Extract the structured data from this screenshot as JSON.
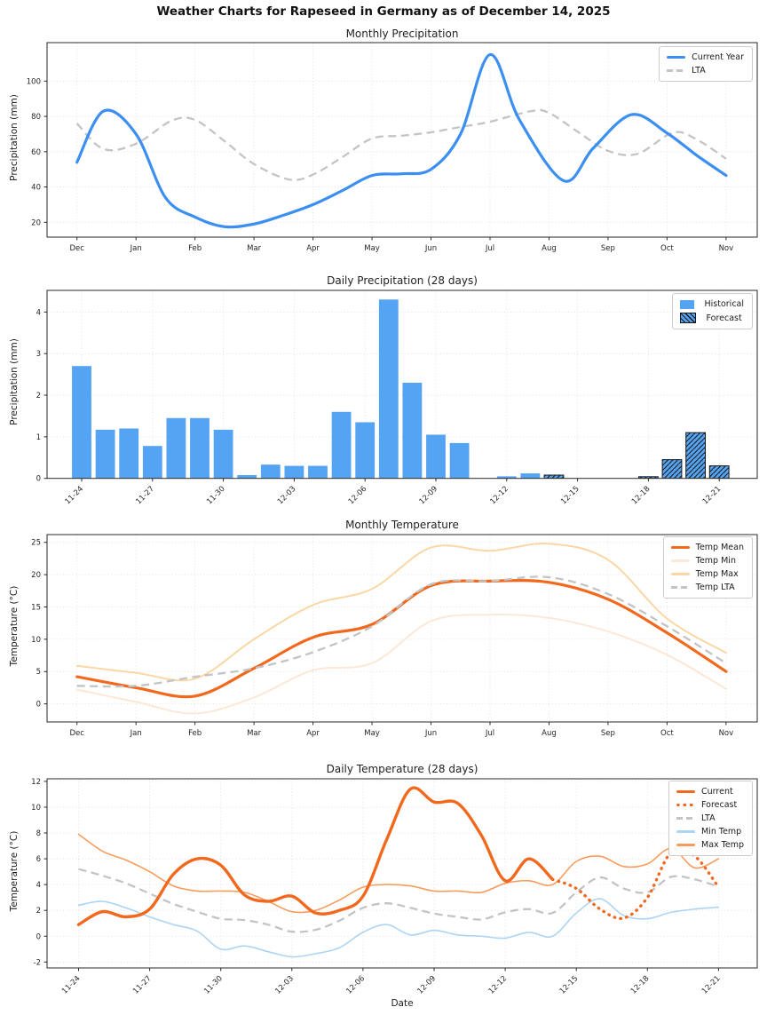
{
  "figure": {
    "title": "Weather Charts for Rapeseed in Germany as of December 14, 2025"
  },
  "colors": {
    "current_year_blue": "#3b8ff3",
    "bar_blue": "#55a3f3",
    "lta_gray": "#c1c5c8",
    "orange_main": "#f2681c",
    "temp_max_tan": "#fad7a5",
    "temp_min_peach": "#fde7d6",
    "daily_max_orange": "#f79c5d",
    "daily_min_blue": "#add4f3",
    "grid": "#dcdcdc",
    "spine": "#2a2a2a",
    "hatch_black": "#1a1a1a"
  },
  "chart_data": [
    {
      "id": "monthly-precipitation",
      "type": "line",
      "title": "Monthly Precipitation",
      "ylabel": "Precipitation (mm)",
      "categories": [
        "Dec",
        "Jan",
        "Feb",
        "Mar",
        "Apr",
        "May",
        "Jun",
        "Jul",
        "Aug",
        "Sep",
        "Oct",
        "Nov"
      ],
      "y_ticks": [
        20,
        40,
        60,
        80,
        100
      ],
      "ylim": [
        11.6,
        121.8
      ],
      "grid": true,
      "legend_position": "upper right",
      "legend": [
        {
          "label": "Current Year",
          "swatch": "line",
          "color": "#3b8ff3",
          "thick": true
        },
        {
          "label": "LTA",
          "swatch": "dash",
          "color": "#c1c5c8"
        }
      ],
      "series": [
        {
          "name": "LTA",
          "color": "#c1c5c8",
          "style": "dashed",
          "width": 2.3,
          "x": [
            0,
            0.45,
            1,
            1.6,
            2,
            2.5,
            3,
            3.6,
            4,
            4.5,
            5,
            5.5,
            6,
            6.5,
            7,
            7.7,
            8,
            8.5,
            9,
            9.5,
            10.1,
            10.5,
            11
          ],
          "values": [
            76,
            61.5,
            64.5,
            77.5,
            78,
            66,
            53,
            44.2,
            47,
            57,
            67.5,
            69,
            71,
            74,
            77,
            83,
            82,
            71,
            60.5,
            58.8,
            70.8,
            67,
            56
          ]
        },
        {
          "name": "Current Year",
          "color": "#3b8ff3",
          "style": "solid",
          "width": 3.2,
          "x": [
            0,
            0.45,
            1,
            1.5,
            2,
            2.5,
            3,
            3.5,
            4,
            4.5,
            5,
            5.5,
            6,
            6.5,
            7,
            7.5,
            8.25,
            8.75,
            9.4,
            10,
            10.5,
            11
          ],
          "values": [
            54,
            83,
            70,
            34,
            23,
            17.5,
            19,
            24,
            30,
            38,
            46.5,
            47.5,
            50,
            70,
            115,
            78,
            43.5,
            62,
            81,
            70.5,
            58,
            46.5
          ]
        }
      ]
    },
    {
      "id": "daily-precipitation",
      "type": "bar",
      "title": "Daily Precipitation (28 days)",
      "ylabel": "Precipitation (mm)",
      "categories": [
        "11-24",
        "11-25",
        "11-26",
        "11-27",
        "11-28",
        "11-29",
        "11-30",
        "12-01",
        "12-02",
        "12-03",
        "12-04",
        "12-05",
        "12-06",
        "12-07",
        "12-08",
        "12-09",
        "12-10",
        "12-11",
        "12-12",
        "12-13",
        "12-14",
        "12-15",
        "12-16",
        "12-17",
        "12-18",
        "12-19",
        "12-20",
        "12-21"
      ],
      "x_tick_every": 3,
      "y_ticks": [
        0,
        1,
        2,
        3,
        4
      ],
      "ylim": [
        0,
        4.52
      ],
      "grid": true,
      "bar_color": "#55a3f3",
      "hatch_color": "#1a1a1a",
      "values": [
        2.7,
        1.17,
        1.2,
        0.78,
        1.45,
        1.45,
        1.17,
        0.08,
        0.33,
        0.3,
        0.3,
        1.6,
        1.35,
        4.3,
        2.3,
        1.05,
        0.85,
        0,
        0.05,
        0.12,
        0.08,
        0,
        0,
        0,
        0.04,
        0.45,
        1.1,
        0.3
      ],
      "forecast_start_index": 20,
      "legend_position": "upper right",
      "legend": [
        {
          "label": "Historical",
          "swatch": "patch",
          "color": "#55a3f3"
        },
        {
          "label": "Forecast",
          "swatch": "patch-hatch",
          "color": "#55a3f3"
        }
      ]
    },
    {
      "id": "monthly-temperature",
      "type": "line",
      "title": "Monthly Temperature",
      "ylabel": "Temperature (°C)",
      "categories": [
        "Dec",
        "Jan",
        "Feb",
        "Mar",
        "Apr",
        "May",
        "Jun",
        "Jul",
        "Aug",
        "Sep",
        "Oct",
        "Nov"
      ],
      "y_ticks": [
        0,
        5,
        10,
        15,
        20,
        25
      ],
      "ylim": [
        -2.8,
        26.2
      ],
      "grid": true,
      "legend_position": "upper right",
      "legend": [
        {
          "label": "Temp Mean",
          "swatch": "line",
          "color": "#f2681c",
          "thick": true
        },
        {
          "label": "Temp Min",
          "swatch": "line",
          "color": "#fde7d6"
        },
        {
          "label": "Temp Max",
          "swatch": "line",
          "color": "#fad7a5"
        },
        {
          "label": "Temp LTA",
          "swatch": "dash",
          "color": "#c1c5c8"
        }
      ],
      "series": [
        {
          "name": "Temp Min",
          "color": "#fde7d6",
          "style": "solid",
          "width": 2,
          "values": [
            2.2,
            0.3,
            -1.5,
            1,
            5.2,
            6.3,
            12.8,
            13.8,
            13.3,
            11.2,
            7.6,
            2.3
          ]
        },
        {
          "name": "Temp Max",
          "color": "#fad7a5",
          "style": "solid",
          "width": 2,
          "values": [
            5.9,
            4.8,
            3.9,
            10,
            15.3,
            17.8,
            24.2,
            23.7,
            24.8,
            22.3,
            13.2,
            7.9
          ]
        },
        {
          "name": "Temp Mean",
          "color": "#f2681c",
          "style": "solid",
          "width": 3.2,
          "values": [
            4.2,
            2.5,
            1.2,
            5.5,
            10.3,
            12.3,
            18.3,
            19,
            18.8,
            16.2,
            11,
            5
          ]
        },
        {
          "name": "Temp LTA",
          "color": "#c1c5c8",
          "style": "dashed",
          "width": 2.3,
          "values": [
            2.8,
            2.8,
            4.2,
            5.5,
            8,
            12,
            18.5,
            19,
            19.6,
            17,
            12,
            6.3
          ]
        }
      ]
    },
    {
      "id": "daily-temperature",
      "type": "line",
      "title": "Daily Temperature (28 days)",
      "ylabel": "Temperature (°C)",
      "xlabel": "Date",
      "categories": [
        "11-24",
        "11-25",
        "11-26",
        "11-27",
        "11-28",
        "11-29",
        "11-30",
        "12-01",
        "12-02",
        "12-03",
        "12-04",
        "12-05",
        "12-06",
        "12-07",
        "12-08",
        "12-09",
        "12-10",
        "12-11",
        "12-12",
        "12-13",
        "12-14",
        "12-15",
        "12-16",
        "12-17",
        "12-18",
        "12-19",
        "12-20",
        "12-21"
      ],
      "x_tick_every": 3,
      "y_ticks": [
        -2,
        0,
        2,
        4,
        6,
        8,
        10,
        12
      ],
      "ylim": [
        -2.46,
        12.2
      ],
      "grid": true,
      "legend_position": "upper right",
      "legend": [
        {
          "label": "Current",
          "swatch": "line",
          "color": "#f2681c",
          "thick": true
        },
        {
          "label": "Forecast",
          "swatch": "dot",
          "color": "#f2681c"
        },
        {
          "label": "LTA",
          "swatch": "dash",
          "color": "#c1c5c8"
        },
        {
          "label": "Min Temp",
          "swatch": "line",
          "color": "#add4f3"
        },
        {
          "label": "Max Temp",
          "swatch": "line",
          "color": "#f79c5d"
        }
      ],
      "series": [
        {
          "name": "Min Temp",
          "color": "#add4f3",
          "style": "solid",
          "width": 1.6,
          "values": [
            2.4,
            2.7,
            2.2,
            1.5,
            0.9,
            0.4,
            -1,
            -0.75,
            -1.2,
            -1.6,
            -1.35,
            -0.9,
            0.3,
            0.9,
            0.1,
            0.45,
            0.1,
            0,
            -0.15,
            0.3,
            0,
            1.8,
            2.9,
            1.6,
            1.35,
            1.85,
            2.1,
            2.25
          ]
        },
        {
          "name": "Max Temp",
          "color": "#f79c5d",
          "style": "solid",
          "width": 1.6,
          "values": [
            7.9,
            6.6,
            5.9,
            5,
            3.9,
            3.5,
            3.5,
            3.4,
            2.7,
            1.9,
            2,
            2.8,
            3.8,
            4,
            3.9,
            3.5,
            3.5,
            3.4,
            4.1,
            4.3,
            4,
            5.8,
            6.2,
            5.4,
            5.6,
            6.8,
            5.3,
            6
          ]
        },
        {
          "name": "LTA",
          "color": "#c1c5c8",
          "style": "dashed",
          "width": 2.3,
          "values": [
            5.2,
            4.7,
            4.1,
            3.3,
            2.5,
            1.9,
            1.35,
            1.25,
            0.9,
            0.35,
            0.5,
            1.2,
            2.2,
            2.55,
            2.2,
            1.75,
            1.5,
            1.3,
            1.85,
            2.1,
            1.8,
            3.4,
            4.55,
            3.7,
            3.4,
            4.6,
            4.4,
            3.85
          ]
        },
        {
          "name": "Forecast",
          "color": "#f2681c",
          "style": "dotted",
          "width": 3.4,
          "x_start": 20,
          "values": [
            4.4,
            3.7,
            2.1,
            1.4,
            3,
            6.5,
            6.2,
            3.8
          ]
        },
        {
          "name": "Current",
          "color": "#f2681c",
          "style": "solid",
          "width": 3.4,
          "values": [
            0.9,
            1.9,
            1.5,
            2.1,
            4.8,
            6,
            5.5,
            3.2,
            2.7,
            3.1,
            1.8,
            2,
            3.1,
            7.5,
            11.4,
            10.4,
            10.3,
            7.8,
            4.3,
            6,
            4.4
          ]
        }
      ]
    }
  ]
}
